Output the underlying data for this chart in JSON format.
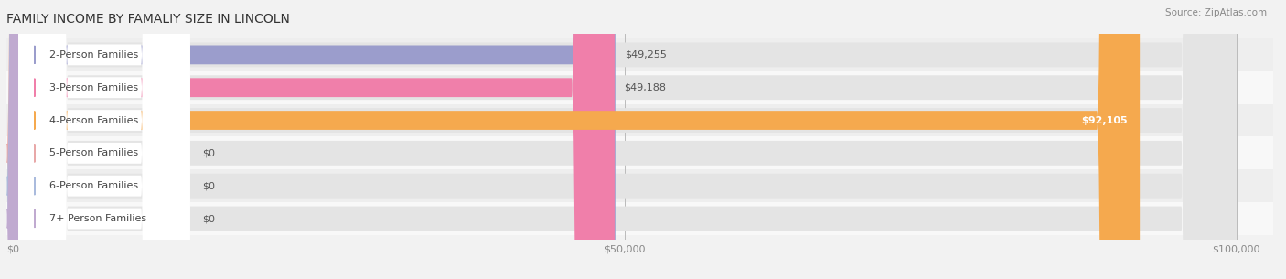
{
  "title": "FAMILY INCOME BY FAMALIY SIZE IN LINCOLN",
  "source": "Source: ZipAtlas.com",
  "categories": [
    "2-Person Families",
    "3-Person Families",
    "4-Person Families",
    "5-Person Families",
    "6-Person Families",
    "7+ Person Families"
  ],
  "values": [
    49255,
    49188,
    92105,
    0,
    0,
    0
  ],
  "bar_colors": [
    "#9b9dcc",
    "#f07faa",
    "#f5a94e",
    "#e8a8a8",
    "#aabbdd",
    "#c0aad0"
  ],
  "dot_colors": [
    "#9b9dcc",
    "#f07faa",
    "#f5a94e",
    "#e8a8a8",
    "#aabbdd",
    "#c0aad0"
  ],
  "value_labels": [
    "$49,255",
    "$49,188",
    "$92,105",
    "$0",
    "$0",
    "$0"
  ],
  "value_inside": [
    false,
    false,
    true,
    false,
    false,
    false
  ],
  "xlim_max": 100000,
  "xticks": [
    0,
    50000,
    100000
  ],
  "xticklabels": [
    "$0",
    "$50,000",
    "$100,000"
  ],
  "background_color": "#f2f2f2",
  "bar_bg_color": "#e4e4e4",
  "row_bg_colors": [
    "#eeeeee",
    "#f8f8f8",
    "#eeeeee",
    "#f8f8f8",
    "#eeeeee",
    "#f8f8f8"
  ],
  "title_fontsize": 10,
  "source_fontsize": 7.5,
  "label_fontsize": 8,
  "value_fontsize": 8
}
